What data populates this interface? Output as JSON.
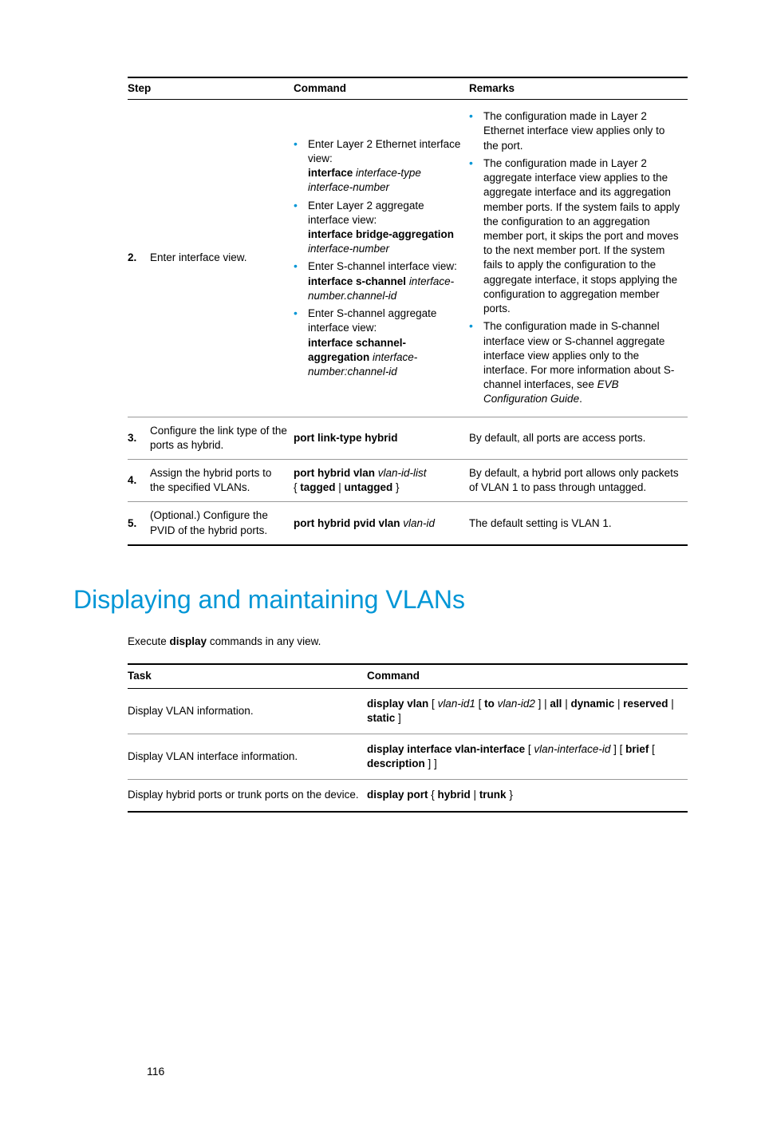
{
  "table1": {
    "headers": [
      "Step",
      "Command",
      "Remarks"
    ],
    "rows": [
      {
        "num": "2.",
        "step": "Enter interface view.",
        "cmd_items": [
          {
            "lead": "Enter Layer 2 Ethernet interface view:",
            "bold": "interface",
            "ital": "interface-type interface-number"
          },
          {
            "lead": "Enter Layer 2 aggregate interface view:",
            "bold": "interface bridge-aggregation",
            "ital": "interface-number"
          },
          {
            "lead": "Enter S-channel interface view:",
            "bold": "interface s-channel",
            "ital": "interface-number.channel-id"
          },
          {
            "lead": "Enter S-channel aggregate interface view:",
            "bold": "interface schannel-aggregation",
            "ital": "interface-number:channel-id"
          }
        ],
        "rem_items": [
          "The configuration made in Layer 2 Ethernet interface view applies only to the port.",
          "The configuration made in Layer 2 aggregate interface view applies to the aggregate interface and its aggregation member ports. If the system fails to apply the configuration to an aggregation member port, it skips the port and moves to the next member port. If the system fails to apply the configuration to the aggregate interface, it stops applying the configuration to aggregation member ports.",
          "The configuration made in S-channel interface view or S-channel aggregate interface view applies only to the interface. For more information about S-channel interfaces, see "
        ],
        "rem_item3_ital": "EVB Configuration Guide"
      },
      {
        "num": "3.",
        "step": "Configure the link type of the ports as hybrid.",
        "cmd_bold": "port link-type hybrid",
        "remarks": "By default, all ports are access ports."
      },
      {
        "num": "4.",
        "step": "Assign the hybrid ports to the specified VLANs.",
        "cmd_parts": {
          "b1": "port hybrid vlan",
          "i1": "vlan-id-list",
          "line2_pre": "{ ",
          "b2": "tagged",
          "mid": " | ",
          "b3": "untagged",
          "post": " }"
        },
        "remarks": "By default, a hybrid port allows only packets of VLAN 1 to pass through untagged."
      },
      {
        "num": "5.",
        "step": "(Optional.) Configure the PVID of the hybrid ports.",
        "cmd_parts": {
          "b1": "port hybrid pvid vlan",
          "i1": "vlan-id"
        },
        "remarks": "The default setting is VLAN 1."
      }
    ]
  },
  "section_heading": "Displaying and maintaining VLANs",
  "intro": {
    "pre": "Execute ",
    "bold": "display",
    "post": " commands in any view."
  },
  "table2": {
    "headers": [
      "Task",
      "Command"
    ],
    "rows": [
      {
        "task": "Display VLAN information.",
        "cmd": {
          "b1": "display vlan",
          "t1": " [ ",
          "i1": "vlan-id1",
          "t2": " [ ",
          "b2": "to",
          "t3": " ",
          "i2": "vlan-id2",
          "t4": " ] | ",
          "b3": "all",
          "t5": " | ",
          "b4": "dynamic",
          "t6": " | ",
          "b5": "reserved",
          "t7": " | ",
          "b6": "static",
          "t8": " ]"
        }
      },
      {
        "task": "Display VLAN interface information.",
        "cmd": {
          "b1": "display interface vlan-interface",
          "t1": " [ ",
          "i1": "vlan-interface-id",
          "t2": " ] [ ",
          "b2": "brief",
          "t3": " [ ",
          "b3": "description",
          "t4": " ] ]"
        }
      },
      {
        "task": "Display hybrid ports or trunk ports on the device.",
        "cmd": {
          "b1": "display port",
          "t1": " { ",
          "b2": "hybrid",
          "t2": " | ",
          "b3": "trunk",
          "t3": " }"
        }
      }
    ]
  },
  "page_number": "116",
  "colors": {
    "accent": "#0096d6"
  }
}
